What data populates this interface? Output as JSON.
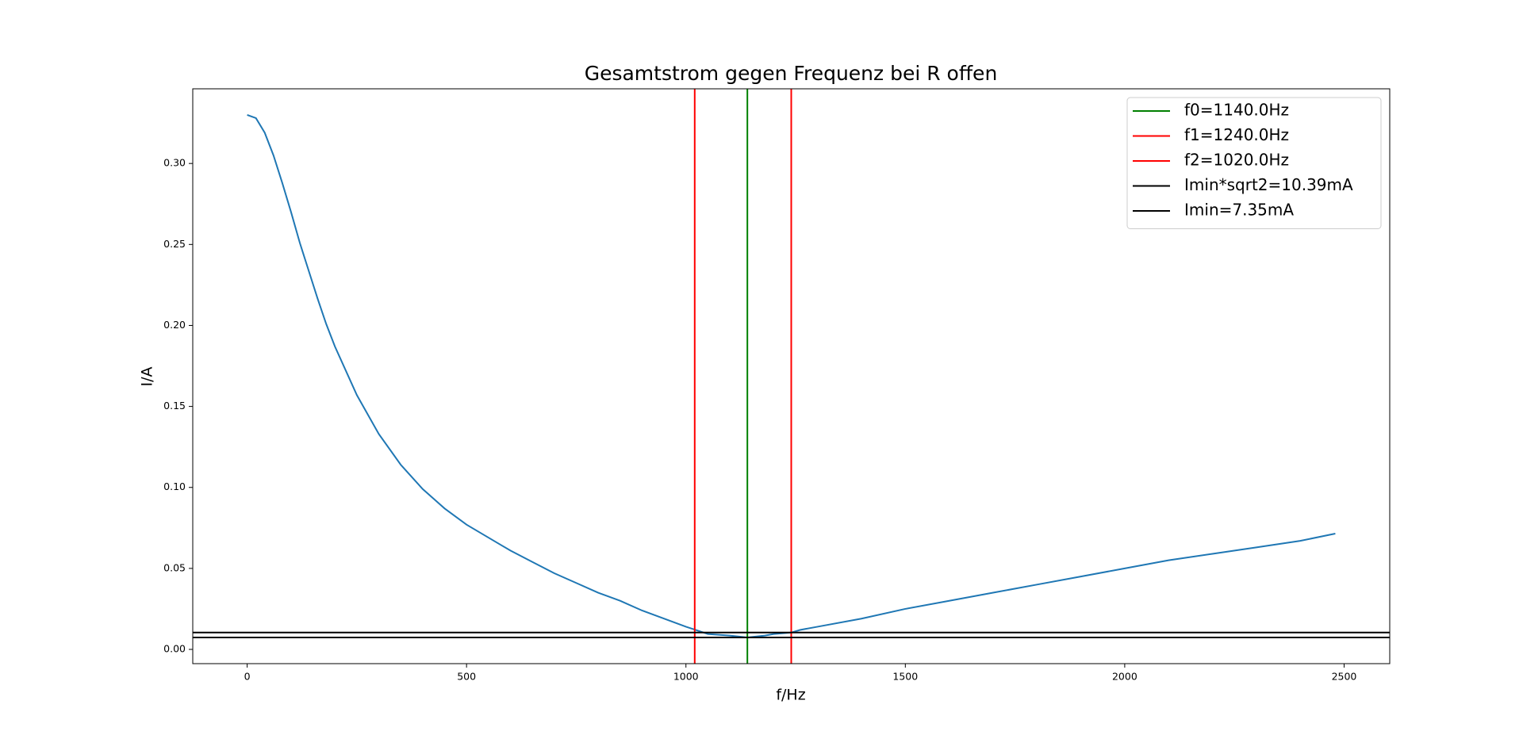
{
  "chart_data": {
    "type": "line",
    "title": "Gesamtstrom gegen Frequenz bei R offen",
    "x_label": "f/Hz",
    "y_label": "I/A",
    "x": [
      0,
      20,
      40,
      60,
      80,
      100,
      120,
      140,
      160,
      180,
      200,
      250,
      300,
      350,
      400,
      450,
      500,
      550,
      600,
      650,
      700,
      750,
      800,
      850,
      900,
      950,
      1000,
      1020,
      1050,
      1100,
      1140,
      1180,
      1200,
      1240,
      1260,
      1300,
      1400,
      1500,
      1600,
      1700,
      1800,
      1900,
      2000,
      2100,
      2200,
      2300,
      2400,
      2480
    ],
    "series": [
      {
        "color": "#1f77b4",
        "values": [
          0.33,
          0.328,
          0.319,
          0.305,
          0.288,
          0.27,
          0.251,
          0.234,
          0.217,
          0.201,
          0.187,
          0.157,
          0.133,
          0.114,
          0.099,
          0.087,
          0.077,
          0.069,
          0.061,
          0.054,
          0.047,
          0.041,
          0.035,
          0.03,
          0.024,
          0.019,
          0.014,
          0.0122,
          0.0095,
          0.0085,
          0.00735,
          0.0085,
          0.0095,
          0.0104,
          0.012,
          0.014,
          0.019,
          0.025,
          0.03,
          0.035,
          0.04,
          0.045,
          0.05,
          0.055,
          0.059,
          0.063,
          0.067,
          0.0715
        ]
      }
    ],
    "vlines": [
      {
        "name": "f0=1140.0Hz",
        "color": "green",
        "x": 1140
      },
      {
        "name": "f1=1240.0Hz",
        "color": "red",
        "x": 1240
      },
      {
        "name": "f2=1020.0Hz",
        "color": "red",
        "x": 1020
      }
    ],
    "hlines": [
      {
        "name": "Imin*sqrt2=10.39mA",
        "color": "black",
        "y": 0.01039
      },
      {
        "name": "Imin=7.35mA",
        "color": "black",
        "y": 0.00735
      }
    ],
    "xlim": [
      -124,
      2604
    ],
    "ylim": [
      -0.0088,
      0.3461
    ],
    "xticks": [
      0,
      500,
      1000,
      1500,
      2000,
      2500
    ],
    "yticks": [
      {
        "value": 0,
        "label": "0.00"
      },
      0.05,
      {
        "value": 0.1,
        "label": "0.10"
      },
      0.15,
      {
        "value": 0.2,
        "label": "0.20"
      },
      0.25,
      {
        "value": 0.3,
        "label": "0.30"
      }
    ],
    "legend": "upper right"
  }
}
